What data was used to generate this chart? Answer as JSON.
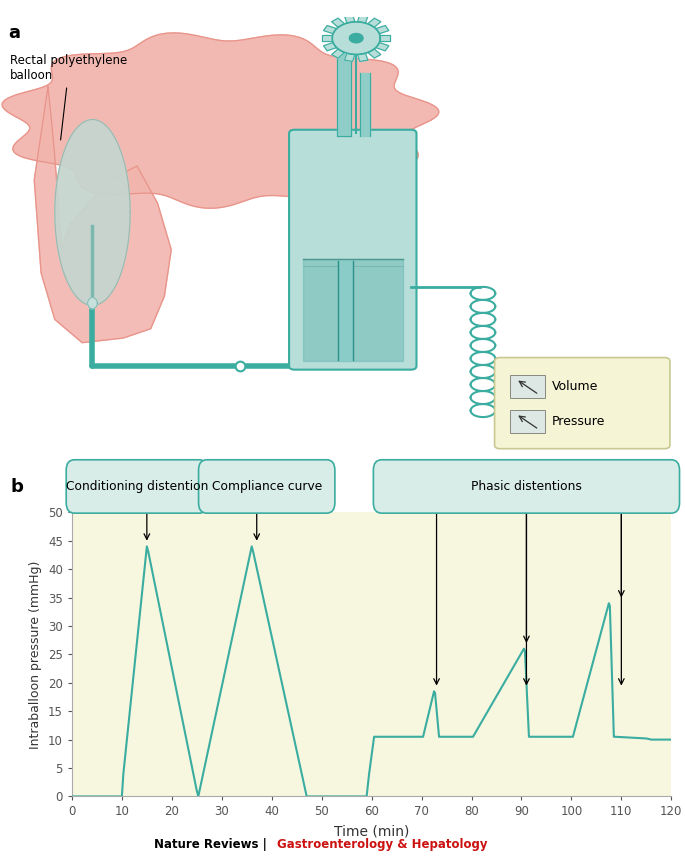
{
  "teal": "#3aada0",
  "teal_light": "#8ecdc8",
  "teal_fill": "#b8deda",
  "teal_dark": "#2a9088",
  "pink_body": "#f2b5ae",
  "pink_dark": "#e8948a",
  "gray_balloon": "#c5d5ce",
  "bg_color": "#ffffff",
  "plot_bg": "#f7f7e0",
  "ylabel": "Intraballoon pressure (mmHg)",
  "xlabel": "Time (min)",
  "ylim": [
    0,
    50
  ],
  "xlim": [
    0,
    120
  ],
  "yticks": [
    0,
    5,
    10,
    15,
    20,
    25,
    30,
    35,
    40,
    45,
    50
  ],
  "xticks": [
    0,
    10,
    20,
    30,
    40,
    50,
    60,
    70,
    80,
    90,
    100,
    110,
    120
  ],
  "panel_a_label": "a",
  "panel_b_label": "b",
  "annotation_cd": "Conditioning distention",
  "annotation_cc": "Compliance curve",
  "annotation_pd": "Phasic distentions",
  "rectal_label": "Rectal polyethylene\nballoon",
  "legend_volume": "Volume",
  "legend_pressure": "Pressure",
  "footer_black": "Nature Reviews | ",
  "footer_red": "Gastroenterology & Hepatology",
  "curve_x": [
    0,
    10,
    10.3,
    15,
    15.3,
    25,
    25.3,
    36,
    36.3,
    47,
    47.3,
    59,
    59.5,
    60.5,
    61,
    70,
    70.3,
    72.5,
    72.7,
    73.5,
    73.7,
    80,
    80.3,
    90.5,
    90.7,
    91.5,
    91.7,
    100,
    100.3,
    107.5,
    107.7,
    108.5,
    108.7,
    115,
    116,
    120
  ],
  "curve_y": [
    0,
    0,
    4,
    44,
    43,
    1,
    0,
    44,
    43,
    0,
    0,
    0,
    4,
    10.5,
    10.5,
    10.5,
    10.5,
    18.5,
    18.2,
    10.5,
    10.5,
    10.5,
    10.5,
    26,
    25.6,
    10.5,
    10.5,
    10.5,
    10.5,
    34,
    33.5,
    10.5,
    10.5,
    10.2,
    10,
    10
  ]
}
